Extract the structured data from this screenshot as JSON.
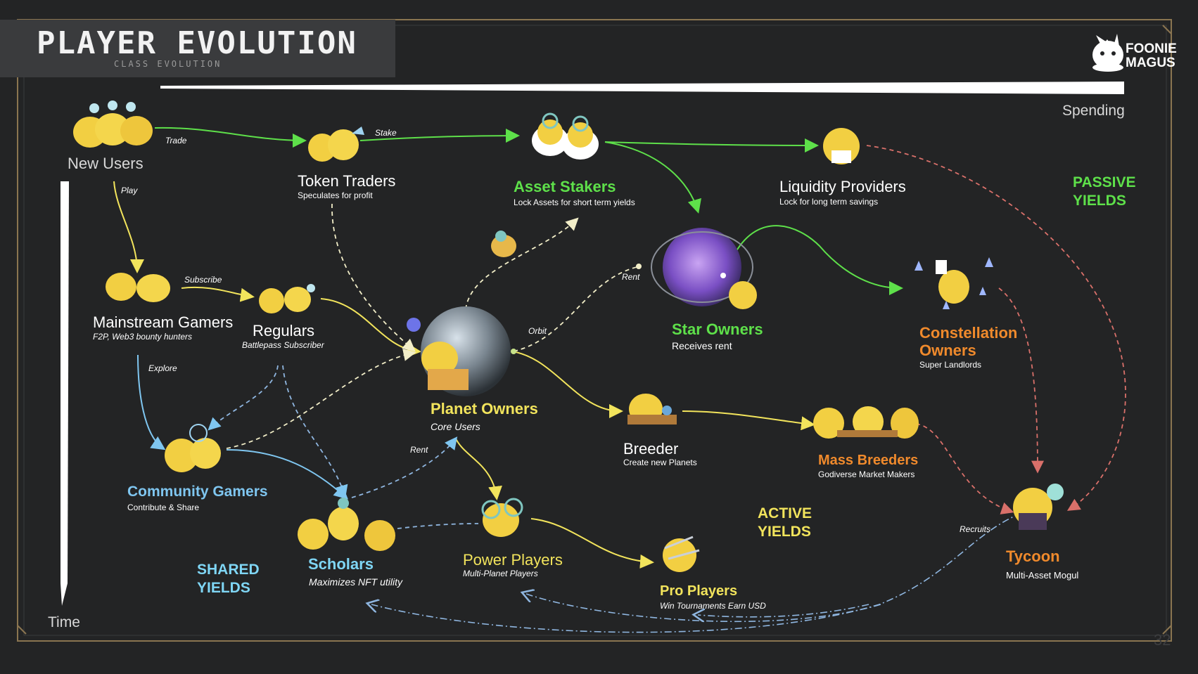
{
  "header": {
    "title": "PLAYER EVOLUTION",
    "subtitle": "CLASS EVOLUTION",
    "brand_line1": "FOONIE",
    "brand_line2": "MAGUS"
  },
  "axes": {
    "x_label": "Spending",
    "y_label": "Time"
  },
  "zones": {
    "passive": [
      "PASSIVE",
      "YIELDS"
    ],
    "active": [
      "ACTIVE",
      "YIELDS"
    ],
    "shared": [
      "SHARED",
      "YIELDS"
    ]
  },
  "colors": {
    "white": "#ffffff",
    "green": "#5ee04a",
    "yellow": "#f2e45c",
    "orange": "#f08a2c",
    "blue": "#7fc6f0",
    "pink": "#d9706a",
    "dashed_blue": "#8fb6e0",
    "dashed_cream": "#f2eec8",
    "frame_gold": "#8a7550"
  },
  "nodes": {
    "new_users": {
      "title": "New Users",
      "subtitle": ""
    },
    "token_traders": {
      "title": "Token Traders",
      "subtitle": "Speculates for profit"
    },
    "asset_stakers": {
      "title": "Asset Stakers",
      "subtitle": "Lock Assets for short term yields"
    },
    "liquidity_providers": {
      "title": "Liquidity Providers",
      "subtitle": "Lock for long term savings"
    },
    "mainstream_gamers": {
      "title": "Mainstream Gamers",
      "subtitle": "F2P, Web3 bounty hunters"
    },
    "regulars": {
      "title": "Regulars",
      "subtitle": "Battlepass Subscriber"
    },
    "star_owners": {
      "title": "Star Owners",
      "subtitle": "Receives rent"
    },
    "constellation_owners": {
      "title_line1": "Constellation",
      "title_line2": "Owners",
      "subtitle": "Super Landlords"
    },
    "planet_owners": {
      "title": "Planet Owners",
      "subtitle": "Core Users"
    },
    "breeder": {
      "title": "Breeder",
      "subtitle": "Create new Planets"
    },
    "mass_breeders": {
      "title": "Mass Breeders",
      "subtitle": "Godiverse Market Makers"
    },
    "community_gamers": {
      "title": "Community Gamers",
      "subtitle": "Contribute & Share"
    },
    "scholars": {
      "title": "Scholars",
      "subtitle": "Maximizes NFT utility"
    },
    "power_players": {
      "title": "Power Players",
      "subtitle": "Multi-Planet Players"
    },
    "pro_players": {
      "title": "Pro Players",
      "subtitle": "Win Tournaments Earn USD"
    },
    "tycoon": {
      "title": "Tycoon",
      "subtitle": "Multi-Asset Mogul"
    }
  },
  "edge_labels": {
    "trade": "Trade",
    "stake": "Stake",
    "play": "Play",
    "subscribe": "Subscribe",
    "explore": "Explore",
    "rent_star": "Rent",
    "orbit": "Orbit",
    "rent_planet": "Rent",
    "recruits": "Recruits"
  },
  "page_number": "32"
}
